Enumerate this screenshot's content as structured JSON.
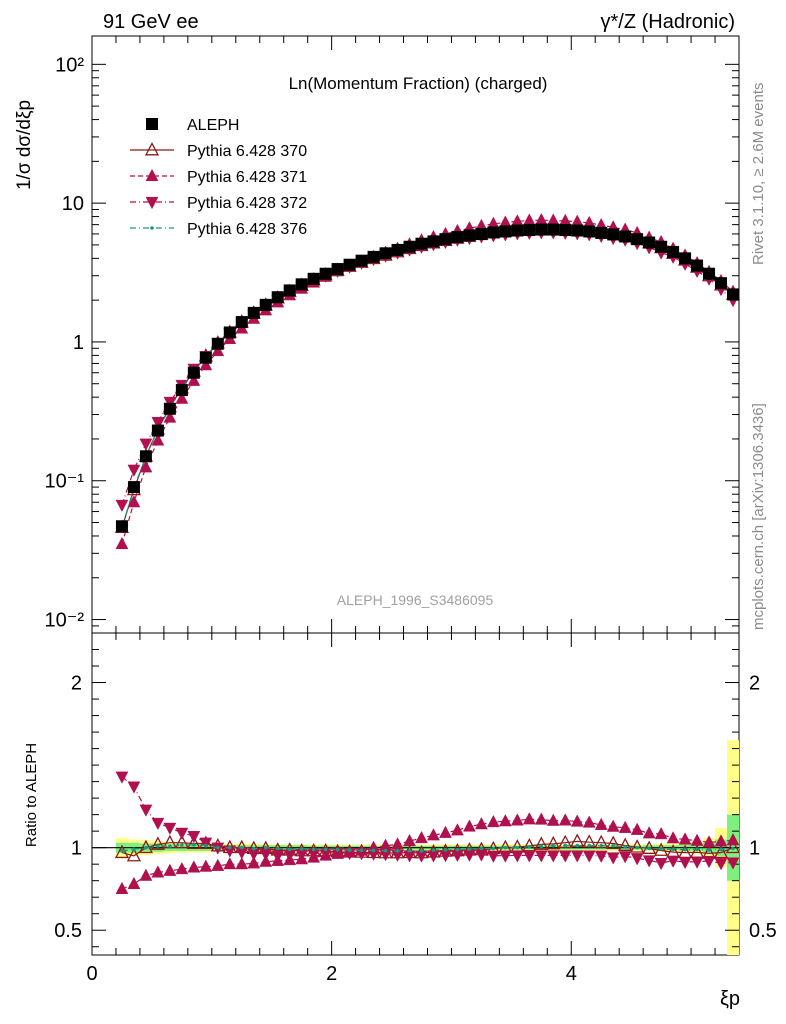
{
  "header": {
    "left": "91 GeV ee",
    "right": "γ*/Z (Hadronic)"
  },
  "side": {
    "rivet": "Rivet 3.1.10, ≥ 2.6M events",
    "mcplots": "mcplots.cern.ch [arXiv:1306.3436]"
  },
  "chart_data": [
    {
      "type": "scatter",
      "title": "Ln(Momentum Fraction) (charged)",
      "watermark": "ALEPH_1996_S3486095",
      "ylabel": "1/σ dσ/dξp",
      "yscale": "log",
      "ylim": [
        0.008,
        160
      ],
      "xlim": [
        0,
        5.4
      ],
      "yticks": [
        {
          "value": 0.01,
          "label": "10⁻²"
        },
        {
          "value": 0.1,
          "label": "10⁻¹"
        },
        {
          "value": 1,
          "label": "1"
        },
        {
          "value": 10,
          "label": "10"
        },
        {
          "value": 100,
          "label": "10²"
        }
      ],
      "legend_position": "top-left",
      "x": [
        0.25,
        0.35,
        0.45,
        0.55,
        0.65,
        0.75,
        0.85,
        0.95,
        1.05,
        1.15,
        1.25,
        1.35,
        1.45,
        1.55,
        1.65,
        1.75,
        1.85,
        1.95,
        2.05,
        2.15,
        2.25,
        2.35,
        2.45,
        2.55,
        2.65,
        2.75,
        2.85,
        2.95,
        3.05,
        3.15,
        3.25,
        3.35,
        3.45,
        3.55,
        3.65,
        3.75,
        3.85,
        3.95,
        4.05,
        4.15,
        4.25,
        4.35,
        4.45,
        4.55,
        4.65,
        4.75,
        4.85,
        4.95,
        5.05,
        5.15,
        5.25,
        5.35
      ],
      "series": [
        {
          "name": "ALEPH",
          "color": "#000000",
          "marker": "square",
          "values": [
            0.047,
            0.09,
            0.15,
            0.23,
            0.33,
            0.45,
            0.6,
            0.77,
            0.97,
            1.17,
            1.39,
            1.62,
            1.85,
            2.1,
            2.35,
            2.6,
            2.85,
            3.1,
            3.35,
            3.6,
            3.85,
            4.1,
            4.35,
            4.6,
            4.85,
            5.1,
            5.3,
            5.5,
            5.7,
            5.85,
            6.0,
            6.15,
            6.25,
            6.35,
            6.4,
            6.45,
            6.45,
            6.4,
            6.35,
            6.25,
            6.1,
            5.95,
            5.75,
            5.5,
            5.2,
            4.85,
            4.45,
            4.0,
            3.55,
            3.1,
            2.65,
            2.2
          ]
        },
        {
          "name": "Pythia 6.428 370",
          "color": "#8b1a1a",
          "marker": "triangle-up-open",
          "line": "solid",
          "values": [
            0.046,
            0.086,
            0.15,
            0.235,
            0.34,
            0.465,
            0.615,
            0.79,
            0.98,
            1.17,
            1.39,
            1.61,
            1.84,
            2.07,
            2.31,
            2.55,
            2.79,
            3.04,
            3.27,
            3.5,
            3.74,
            3.98,
            4.21,
            4.45,
            4.7,
            4.94,
            5.16,
            5.38,
            5.58,
            5.76,
            5.93,
            6.11,
            6.25,
            6.37,
            6.47,
            6.58,
            6.6,
            6.6,
            6.59,
            6.46,
            6.28,
            6.1,
            5.82,
            5.52,
            5.17,
            4.77,
            4.33,
            3.88,
            3.45,
            2.99,
            2.57,
            2.2
          ]
        },
        {
          "name": "Pythia 6.428 371",
          "color": "#b0104e",
          "marker": "triangle-up",
          "line": "dashed",
          "values": [
            0.035,
            0.07,
            0.125,
            0.195,
            0.285,
            0.39,
            0.525,
            0.68,
            0.86,
            1.05,
            1.25,
            1.47,
            1.69,
            1.93,
            2.17,
            2.42,
            2.68,
            2.95,
            3.23,
            3.5,
            3.78,
            4.1,
            4.4,
            4.7,
            5.05,
            5.4,
            5.7,
            6.0,
            6.3,
            6.6,
            6.85,
            7.1,
            7.25,
            7.4,
            7.5,
            7.55,
            7.5,
            7.45,
            7.35,
            7.2,
            6.95,
            6.7,
            6.45,
            6.1,
            5.65,
            5.25,
            4.7,
            4.2,
            3.7,
            3.2,
            2.75,
            2.3
          ]
        },
        {
          "name": "Pythia 6.428 372",
          "color": "#b0104e",
          "marker": "triangle-down",
          "line": "dashdot",
          "values": [
            0.067,
            0.12,
            0.185,
            0.265,
            0.37,
            0.49,
            0.64,
            0.79,
            0.97,
            1.15,
            1.35,
            1.56,
            1.78,
            2.0,
            2.25,
            2.5,
            2.75,
            3.0,
            3.25,
            3.48,
            3.72,
            3.95,
            4.18,
            4.4,
            4.62,
            4.85,
            5.05,
            5.25,
            5.45,
            5.6,
            5.75,
            5.85,
            5.95,
            6.05,
            6.1,
            6.15,
            6.15,
            6.1,
            6.05,
            5.95,
            5.8,
            5.6,
            5.45,
            5.15,
            4.8,
            4.4,
            4.1,
            3.65,
            3.25,
            2.85,
            2.4,
            2.0
          ]
        },
        {
          "name": "Pythia 6.428 376",
          "color": "#1a9a7a",
          "marker": "dot",
          "line": "dashdot",
          "values": [
            0.046,
            0.089,
            0.15,
            0.232,
            0.334,
            0.458,
            0.61,
            0.78,
            0.97,
            1.17,
            1.39,
            1.61,
            1.85,
            2.09,
            2.33,
            2.58,
            2.82,
            3.07,
            3.31,
            3.55,
            3.79,
            4.03,
            4.27,
            4.51,
            4.76,
            5.0,
            5.22,
            5.43,
            5.63,
            5.8,
            5.97,
            6.12,
            6.25,
            6.35,
            6.43,
            6.5,
            6.52,
            6.48,
            6.43,
            6.33,
            6.18,
            6.02,
            5.78,
            5.5,
            5.18,
            4.82,
            4.4,
            3.95,
            3.51,
            3.06,
            2.62,
            2.19
          ]
        }
      ]
    },
    {
      "type": "scatter",
      "ylabel": "Ratio to ALEPH",
      "xlabel": "ξp",
      "ylim": [
        0.35,
        2.3
      ],
      "xlim": [
        0,
        5.4
      ],
      "xticks": [
        {
          "value": 0,
          "label": "0"
        },
        {
          "value": 2,
          "label": "2"
        },
        {
          "value": 4,
          "label": "4"
        }
      ],
      "yticks": [
        {
          "value": 0.5,
          "label": "0.5"
        },
        {
          "value": 1,
          "label": "1"
        },
        {
          "value": 2,
          "label": "2"
        }
      ],
      "reference_line": 1,
      "band_colors": {
        "inner": "#7ef07e",
        "outer": "#ffff88"
      },
      "bands_x": [
        0.25,
        0.35,
        0.45,
        0.55,
        0.65,
        0.75,
        0.85,
        0.95,
        1.05,
        1.15,
        1.25,
        1.35,
        1.45,
        1.55,
        1.65,
        1.75,
        1.85,
        1.95,
        2.05,
        2.15,
        2.25,
        2.35,
        2.45,
        2.55,
        2.65,
        2.75,
        2.85,
        2.95,
        3.05,
        3.15,
        3.25,
        3.35,
        3.45,
        3.55,
        3.65,
        3.75,
        3.85,
        3.95,
        4.05,
        4.15,
        4.25,
        4.35,
        4.45,
        4.55,
        4.65,
        4.75,
        4.85,
        4.95,
        5.05,
        5.15,
        5.25,
        5.35
      ],
      "band_inner": [
        0.03,
        0.03,
        0.025,
        0.025,
        0.02,
        0.02,
        0.02,
        0.02,
        0.015,
        0.015,
        0.015,
        0.015,
        0.015,
        0.015,
        0.015,
        0.015,
        0.012,
        0.012,
        0.012,
        0.012,
        0.012,
        0.012,
        0.012,
        0.012,
        0.012,
        0.012,
        0.012,
        0.012,
        0.012,
        0.012,
        0.012,
        0.012,
        0.012,
        0.012,
        0.012,
        0.012,
        0.012,
        0.012,
        0.012,
        0.012,
        0.012,
        0.012,
        0.012,
        0.012,
        0.015,
        0.015,
        0.015,
        0.02,
        0.02,
        0.03,
        0.05,
        0.2
      ],
      "band_outer": [
        0.06,
        0.05,
        0.045,
        0.04,
        0.035,
        0.03,
        0.03,
        0.03,
        0.025,
        0.025,
        0.025,
        0.025,
        0.02,
        0.02,
        0.02,
        0.02,
        0.02,
        0.02,
        0.02,
        0.02,
        0.02,
        0.02,
        0.02,
        0.02,
        0.02,
        0.02,
        0.02,
        0.02,
        0.02,
        0.02,
        0.02,
        0.02,
        0.02,
        0.02,
        0.02,
        0.02,
        0.02,
        0.02,
        0.02,
        0.02,
        0.02,
        0.02,
        0.02,
        0.02,
        0.02,
        0.025,
        0.025,
        0.03,
        0.04,
        0.06,
        0.12,
        0.65
      ],
      "series": [
        {
          "name": "Pythia 6.428 370",
          "color": "#8b1a1a",
          "marker": "triangle-up-open",
          "line": "solid",
          "values": [
            0.97,
            0.95,
            1.0,
            1.02,
            1.03,
            1.03,
            1.025,
            1.025,
            1.01,
            1.0,
            1.0,
            0.995,
            0.995,
            0.985,
            0.985,
            0.98,
            0.98,
            0.98,
            0.975,
            0.973,
            0.972,
            0.97,
            0.968,
            0.968,
            0.97,
            0.968,
            0.973,
            0.978,
            0.98,
            0.985,
            0.988,
            0.993,
            1.0,
            1.003,
            1.01,
            1.02,
            1.023,
            1.03,
            1.038,
            1.033,
            1.03,
            1.025,
            1.013,
            1.003,
            0.995,
            0.983,
            0.973,
            0.97,
            0.972,
            0.965,
            0.97,
            1.0
          ]
        },
        {
          "name": "Pythia 6.428 371",
          "color": "#b0104e",
          "marker": "triangle-up",
          "line": "dashed",
          "values": [
            0.75,
            0.78,
            0.83,
            0.85,
            0.86,
            0.87,
            0.88,
            0.885,
            0.89,
            0.9,
            0.9,
            0.905,
            0.915,
            0.92,
            0.925,
            0.93,
            0.94,
            0.952,
            0.963,
            0.972,
            0.982,
            1.0,
            1.012,
            1.02,
            1.04,
            1.058,
            1.075,
            1.09,
            1.105,
            1.128,
            1.142,
            1.155,
            1.16,
            1.165,
            1.172,
            1.17,
            1.163,
            1.165,
            1.158,
            1.152,
            1.138,
            1.127,
            1.12,
            1.108,
            1.087,
            1.082,
            1.057,
            1.05,
            1.042,
            1.032,
            1.038,
            1.045
          ]
        },
        {
          "name": "Pythia 6.428 372",
          "color": "#b0104e",
          "marker": "triangle-down",
          "line": "dashdot",
          "values": [
            1.43,
            1.37,
            1.23,
            1.15,
            1.12,
            1.09,
            1.07,
            1.03,
            1.0,
            0.983,
            0.972,
            0.963,
            0.962,
            0.952,
            0.957,
            0.962,
            0.965,
            0.968,
            0.97,
            0.967,
            0.966,
            0.963,
            0.96,
            0.957,
            0.953,
            0.952,
            0.953,
            0.955,
            0.956,
            0.957,
            0.958,
            0.951,
            0.952,
            0.953,
            0.953,
            0.953,
            0.953,
            0.953,
            0.953,
            0.952,
            0.951,
            0.941,
            0.948,
            0.936,
            0.923,
            0.907,
            0.921,
            0.913,
            0.915,
            0.919,
            0.906,
            0.91
          ]
        },
        {
          "name": "Pythia 6.428 376",
          "color": "#1a9a7a",
          "marker": "dot",
          "line": "dashdot",
          "values": [
            0.98,
            0.99,
            1.0,
            1.01,
            1.01,
            1.017,
            1.017,
            1.013,
            1.0,
            1.0,
            1.0,
            0.994,
            1.0,
            0.995,
            0.99,
            0.992,
            0.99,
            0.99,
            0.988,
            0.986,
            0.984,
            0.983,
            0.982,
            0.98,
            0.981,
            0.98,
            0.985,
            0.987,
            0.988,
            0.991,
            0.995,
            0.995,
            1.0,
            1.0,
            1.005,
            1.008,
            1.011,
            1.013,
            1.013,
            1.013,
            1.013,
            1.012,
            1.005,
            1.0,
            0.996,
            0.994,
            0.989,
            0.988,
            0.989,
            0.987,
            0.989,
            0.995
          ]
        }
      ]
    }
  ]
}
